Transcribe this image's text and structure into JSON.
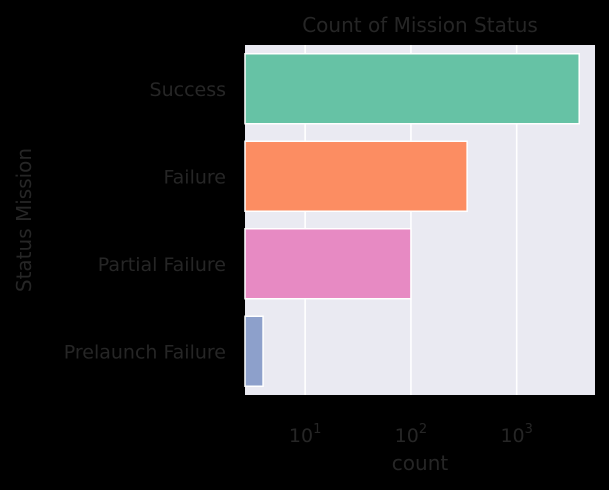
{
  "chart_data": {
    "type": "bar",
    "orientation": "horizontal",
    "title": "Count of Mission Status",
    "xlabel": "count",
    "ylabel": "Status Mission",
    "x_scale": "log",
    "xlim": [
      2.7,
      5500
    ],
    "x_ticks": [
      {
        "value": 10,
        "base": "10",
        "exp": "1"
      },
      {
        "value": 100,
        "base": "10",
        "exp": "2"
      },
      {
        "value": 1000,
        "base": "10",
        "exp": "3"
      }
    ],
    "categories": [
      "Success",
      "Failure",
      "Partial Failure",
      "Prelaunch Failure"
    ],
    "values": [
      3900,
      340,
      100,
      4
    ],
    "colors": [
      "#66c2a5",
      "#fc8d62",
      "#e78ac3",
      "#8da0cb"
    ],
    "grid": true,
    "background": "#eaeaf2",
    "text_color": "#262626"
  }
}
